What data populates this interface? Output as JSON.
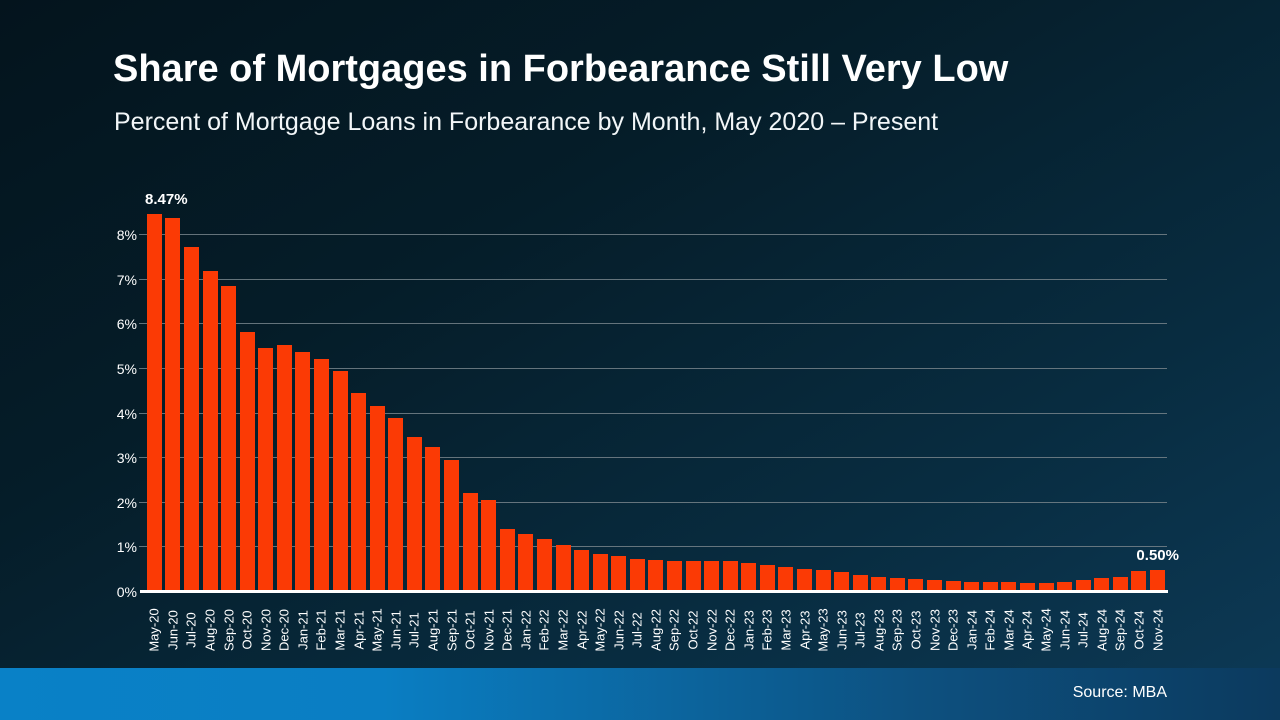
{
  "slide": {
    "title": "Share of Mortgages in Forbearance Still Very Low",
    "subtitle": "Percent of Mortgage Loans in Forbearance by Month, May 2020 – Present",
    "source_label": "Source: MBA"
  },
  "colors": {
    "bar": "#fb3a05",
    "background_top": "#04141d",
    "background_bottom": "#0d3a57",
    "gridline": "#76828a",
    "axis_baseline": "#ffffff",
    "text": "#ffffff",
    "footer_left": "#0981c7",
    "footer_right": "#0c3a5e"
  },
  "chart_data": {
    "type": "bar",
    "title": "Share of Mortgages in Forbearance Still Very Low",
    "subtitle": "Percent of Mortgage Loans in Forbearance by Month, May 2020 – Present",
    "xlabel": "",
    "ylabel": "",
    "ylim": [
      0,
      9
    ],
    "yticks": [
      "0%",
      "1%",
      "2%",
      "3%",
      "4%",
      "5%",
      "6%",
      "7%",
      "8%"
    ],
    "grid": true,
    "legend": false,
    "bar_color": "#fb3a05",
    "categories": [
      "May-20",
      "Jun-20",
      "Jul-20",
      "Aug-20",
      "Sep-20",
      "Oct-20",
      "Nov-20",
      "Dec-20",
      "Jan-21",
      "Feb-21",
      "Mar-21",
      "Apr-21",
      "May-21",
      "Jun-21",
      "Jul-21",
      "Aug-21",
      "Sep-21",
      "Oct-21",
      "Nov-21",
      "Dec-21",
      "Jan-22",
      "Feb-22",
      "Mar-22",
      "Apr-22",
      "May-22",
      "Jun-22",
      "Jul-22",
      "Aug-22",
      "Sep-22",
      "Oct-22",
      "Nov-22",
      "Dec-22",
      "Jan-23",
      "Feb-23",
      "Mar-23",
      "Apr-23",
      "May-23",
      "Jun-23",
      "Jul-23",
      "Aug-23",
      "Sep-23",
      "Oct-23",
      "Nov-23",
      "Dec-23",
      "Jan-24",
      "Feb-24",
      "Mar-24",
      "Apr-24",
      "May-24",
      "Jun-24",
      "Jul-24",
      "Aug-24",
      "Sep-24",
      "Oct-24",
      "Nov-24"
    ],
    "values": [
      8.47,
      8.39,
      7.74,
      7.2,
      6.87,
      5.83,
      5.48,
      5.53,
      5.38,
      5.22,
      4.96,
      4.47,
      4.18,
      3.91,
      3.47,
      3.25,
      2.96,
      2.21,
      2.06,
      1.41,
      1.3,
      1.18,
      1.05,
      0.94,
      0.85,
      0.81,
      0.74,
      0.72,
      0.69,
      0.7,
      0.7,
      0.7,
      0.64,
      0.6,
      0.55,
      0.51,
      0.49,
      0.44,
      0.39,
      0.33,
      0.31,
      0.29,
      0.26,
      0.24,
      0.23,
      0.22,
      0.22,
      0.21,
      0.21,
      0.23,
      0.27,
      0.31,
      0.34,
      0.47,
      0.5
    ],
    "annotations": [
      {
        "index": 0,
        "text": "8.47%"
      },
      {
        "index": 54,
        "text": "0.50%"
      }
    ]
  }
}
